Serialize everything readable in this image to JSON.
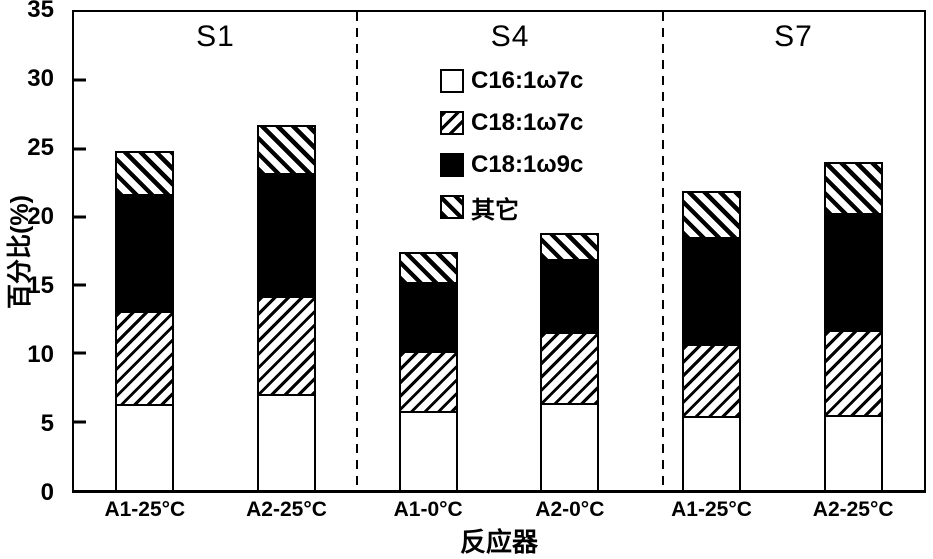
{
  "chart_data": {
    "type": "bar",
    "stacked": true,
    "title": "",
    "xlabel": "反应器",
    "ylabel": "百分比(%)",
    "ylim": [
      0,
      35
    ],
    "ytick_step": 5,
    "yticks": [
      0,
      5,
      10,
      15,
      20,
      25,
      30,
      35
    ],
    "grid": false,
    "legend_position": "inside-top-center-section-S4",
    "categories": [
      "A1-25°C",
      "A2-25°C",
      "A1-0°C",
      "A2-0°C",
      "A1-25°C",
      "A2-25°C"
    ],
    "series": [
      {
        "name": "C16:1ω7c",
        "swatch": "open",
        "values": [
          6.3,
          7.0,
          5.8,
          6.4,
          5.4,
          5.5
        ]
      },
      {
        "name": "C18:1ω7c",
        "swatch": "hatch-forward",
        "values": [
          6.8,
          7.2,
          4.4,
          5.2,
          5.3,
          6.2
        ]
      },
      {
        "name": "C18:1ω9c",
        "swatch": "solid-black",
        "values": [
          8.6,
          9.0,
          5.0,
          5.3,
          7.8,
          8.6
        ]
      },
      {
        "name": "其它",
        "swatch": "hatch-backward",
        "values": [
          3.1,
          3.5,
          2.2,
          1.9,
          3.4,
          3.7
        ]
      }
    ],
    "totals": [
      24.8,
      26.7,
      17.4,
      18.8,
      21.9,
      24.0
    ],
    "sections": [
      {
        "label": "S1",
        "divider_after_pct": 33.3
      },
      {
        "label": "S4",
        "divider_after_pct": 69.3
      },
      {
        "label": "S7",
        "divider_after_pct": null
      }
    ],
    "colors": {
      "foreground": "#000000",
      "background": "#ffffff"
    }
  }
}
